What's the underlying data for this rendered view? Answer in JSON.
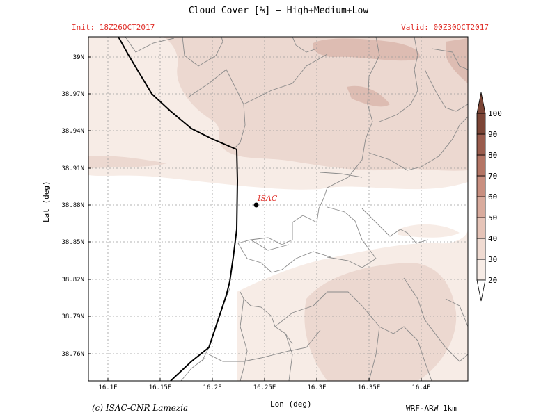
{
  "header": {
    "title": "Cloud Cover [%] — High+Medium+Low",
    "init": "Init: 18Z26OCT2017",
    "valid": "Valid: 00Z30OCT2017"
  },
  "map": {
    "x_label": "Lon (deg)",
    "y_label": "Lat (deg)",
    "lon_ticks": [
      "16.1E",
      "16.15E",
      "16.2E",
      "16.25E",
      "16.3E",
      "16.35E",
      "16.4E"
    ],
    "lat_ticks": [
      "39N",
      "38.97N",
      "38.94N",
      "38.91N",
      "38.88N",
      "38.85N",
      "38.82N",
      "38.79N",
      "38.76N"
    ],
    "station": {
      "label": "ISAC",
      "lon": 16.24,
      "lat": 38.88
    }
  },
  "colorbar": {
    "levels": [
      "20",
      "30",
      "40",
      "50",
      "60",
      "70",
      "80",
      "90",
      "100"
    ],
    "colors": [
      "#ffffff",
      "#f7ece6",
      "#f0dbd2",
      "#e6c4b8",
      "#d9ab9d",
      "#c98f80",
      "#b47565",
      "#9a5c4d",
      "#7c4536"
    ]
  },
  "footer": {
    "credit": "(c) ISAC-CNR Lamezia",
    "model": "WRF-ARW 1km"
  }
}
